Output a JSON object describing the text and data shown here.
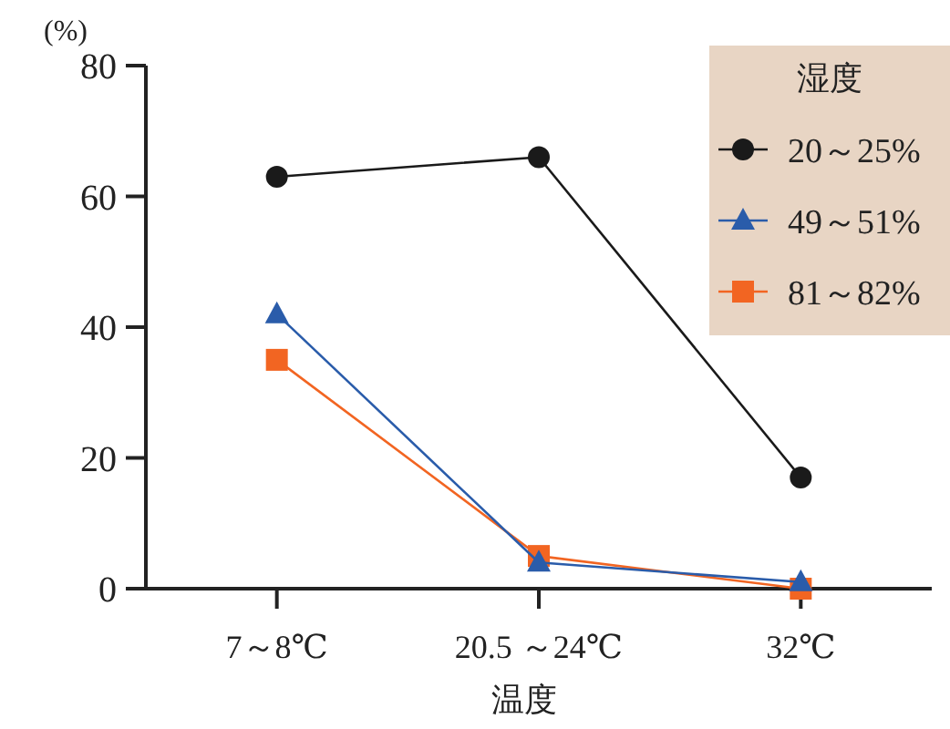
{
  "chart_data": {
    "type": "line",
    "ylabel": "(%)",
    "xlabel": "温度",
    "legend_title": "湿度",
    "categories": [
      "7～8℃",
      "20.5 ～24℃",
      "32℃"
    ],
    "series": [
      {
        "name": "20～25%",
        "color": "#1a1a1a",
        "marker": "circle",
        "values": [
          63,
          66,
          17
        ]
      },
      {
        "name": "49～51%",
        "color": "#2a5caa",
        "marker": "triangle",
        "values": [
          42,
          4,
          1
        ]
      },
      {
        "name": "81～82%",
        "color": "#f26522",
        "marker": "square",
        "values": [
          35,
          5,
          0
        ]
      }
    ],
    "ylim": [
      0,
      80
    ],
    "yticks": [
      0,
      20,
      40,
      60,
      80
    ],
    "grid": false,
    "legend": "top right"
  }
}
